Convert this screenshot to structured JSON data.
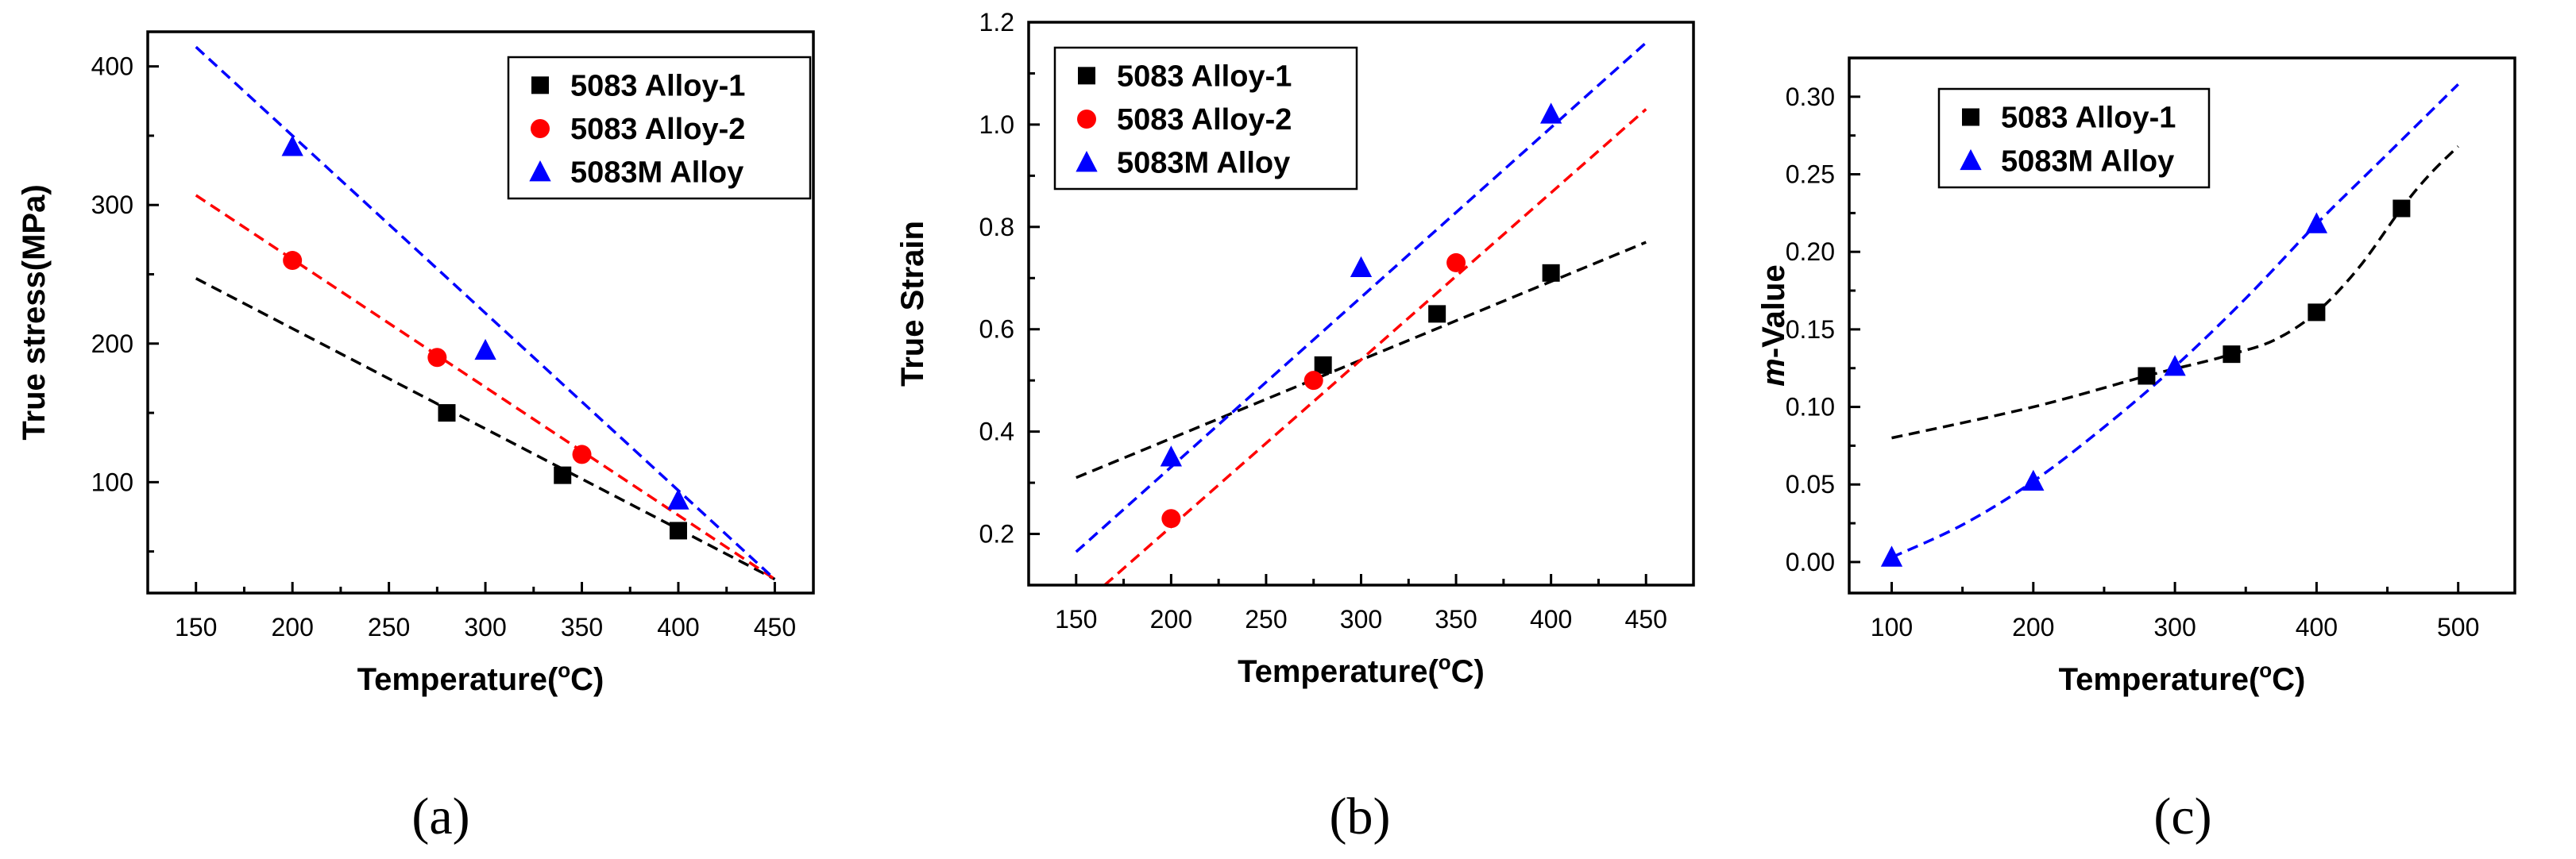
{
  "chart_data": [
    {
      "type": "scatter",
      "panel_label": "(a)",
      "xlabel": "Temperature(",
      "xlabel_sup": "o",
      "xlabel_suffix": "C)",
      "ylabel": "True stress(MPa)",
      "xlim": [
        125,
        470
      ],
      "ylim": [
        20,
        425
      ],
      "xticks": [
        150,
        200,
        250,
        300,
        350,
        400,
        450
      ],
      "yticks": [
        100,
        200,
        300,
        400
      ],
      "xtick_labels": [
        "150",
        "200",
        "250",
        "300",
        "350",
        "400",
        "450"
      ],
      "ytick_labels": [
        "100",
        "200",
        "300",
        "400"
      ],
      "legend": [
        "5083 Alloy-1",
        "5083 Alloy-2",
        "5083M Alloy"
      ],
      "series": [
        {
          "name": "5083 Alloy-1",
          "marker": "square",
          "color": "#000000",
          "x": [
            280,
            340,
            400
          ],
          "y": [
            150,
            105,
            65
          ],
          "fit_x": [
            150,
            450
          ],
          "fit_y": [
            247,
            30
          ]
        },
        {
          "name": "5083 Alloy-2",
          "marker": "circle",
          "color": "#ff0000",
          "x": [
            200,
            275,
            350
          ],
          "y": [
            260,
            190,
            120
          ],
          "fit_x": [
            150,
            450
          ],
          "fit_y": [
            307,
            30
          ]
        },
        {
          "name": "5083M Alloy",
          "marker": "triangle",
          "color": "#0000ff",
          "x": [
            200,
            300,
            400
          ],
          "y": [
            342,
            195,
            87
          ],
          "fit_x": [
            150,
            450
          ],
          "fit_y": [
            414,
            30
          ]
        }
      ]
    },
    {
      "type": "scatter",
      "panel_label": "(b)",
      "xlabel": "Temperature(",
      "xlabel_sup": "o",
      "xlabel_suffix": "C)",
      "ylabel": "True Strain",
      "xlim": [
        125,
        475
      ],
      "ylim": [
        0.1,
        1.2
      ],
      "xticks": [
        150,
        200,
        250,
        300,
        350,
        400,
        450
      ],
      "yticks": [
        0.2,
        0.4,
        0.6,
        0.8,
        1.0,
        1.2
      ],
      "xtick_labels": [
        "150",
        "200",
        "250",
        "300",
        "350",
        "400",
        "450"
      ],
      "ytick_labels": [
        "0.2",
        "0.4",
        "0.6",
        "0.8",
        "1.0",
        "1.2"
      ],
      "legend": [
        "5083 Alloy-1",
        "5083 Alloy-2",
        "5083M Alloy"
      ],
      "series": [
        {
          "name": "5083 Alloy-1",
          "marker": "square",
          "color": "#000000",
          "x": [
            280,
            340,
            400
          ],
          "y": [
            0.53,
            0.63,
            0.71
          ],
          "fit_x": [
            150,
            450
          ],
          "fit_y": [
            0.31,
            0.77
          ]
        },
        {
          "name": "5083 Alloy-2",
          "marker": "circle",
          "color": "#ff0000",
          "x": [
            200,
            275,
            350
          ],
          "y": [
            0.23,
            0.5,
            0.73
          ],
          "fit_x": [
            165,
            450
          ],
          "fit_y": [
            0.1,
            1.03
          ]
        },
        {
          "name": "5083M Alloy",
          "marker": "triangle",
          "color": "#0000ff",
          "x": [
            200,
            300,
            400
          ],
          "y": [
            0.35,
            0.72,
            1.02
          ],
          "fit_x": [
            150,
            450
          ],
          "fit_y": [
            0.165,
            1.16
          ]
        }
      ]
    },
    {
      "type": "scatter",
      "panel_label": "(c)",
      "xlabel": "Temperature(",
      "xlabel_sup": "o",
      "xlabel_suffix": "C)",
      "ylabel_italic": "m",
      "ylabel": "-Value",
      "xlim": [
        70,
        540
      ],
      "ylim": [
        -0.02,
        0.325
      ],
      "xticks": [
        100,
        200,
        300,
        400,
        500
      ],
      "yticks": [
        0.0,
        0.05,
        0.1,
        0.15,
        0.2,
        0.25,
        0.3
      ],
      "xtick_labels": [
        "100",
        "200",
        "300",
        "400",
        "500"
      ],
      "ytick_labels": [
        "0.00",
        "0.05",
        "0.10",
        "0.15",
        "0.20",
        "0.25",
        "0.30"
      ],
      "legend": [
        "5083 Alloy-1",
        "5083M Alloy"
      ],
      "series": [
        {
          "name": "5083 Alloy-1",
          "marker": "square",
          "color": "#000000",
          "x": [
            280,
            340,
            400,
            460
          ],
          "y": [
            0.12,
            0.134,
            0.161,
            0.228
          ],
          "fit_x": [
            100,
            200,
            280,
            320,
            340,
            370,
            400,
            430,
            460,
            480,
            500
          ],
          "fit_y": [
            0.08,
            0.1,
            0.12,
            0.129,
            0.134,
            0.143,
            0.161,
            0.19,
            0.228,
            0.25,
            0.268
          ]
        },
        {
          "name": "5083M Alloy",
          "marker": "triangle",
          "color": "#0000ff",
          "x": [
            100,
            200,
            300,
            400
          ],
          "y": [
            0.003,
            0.052,
            0.126,
            0.218
          ],
          "fit_x": [
            100,
            150,
            200,
            250,
            300,
            350,
            400,
            450,
            500
          ],
          "fit_y": [
            0.003,
            0.024,
            0.052,
            0.087,
            0.126,
            0.17,
            0.218,
            0.263,
            0.308
          ]
        }
      ]
    }
  ]
}
